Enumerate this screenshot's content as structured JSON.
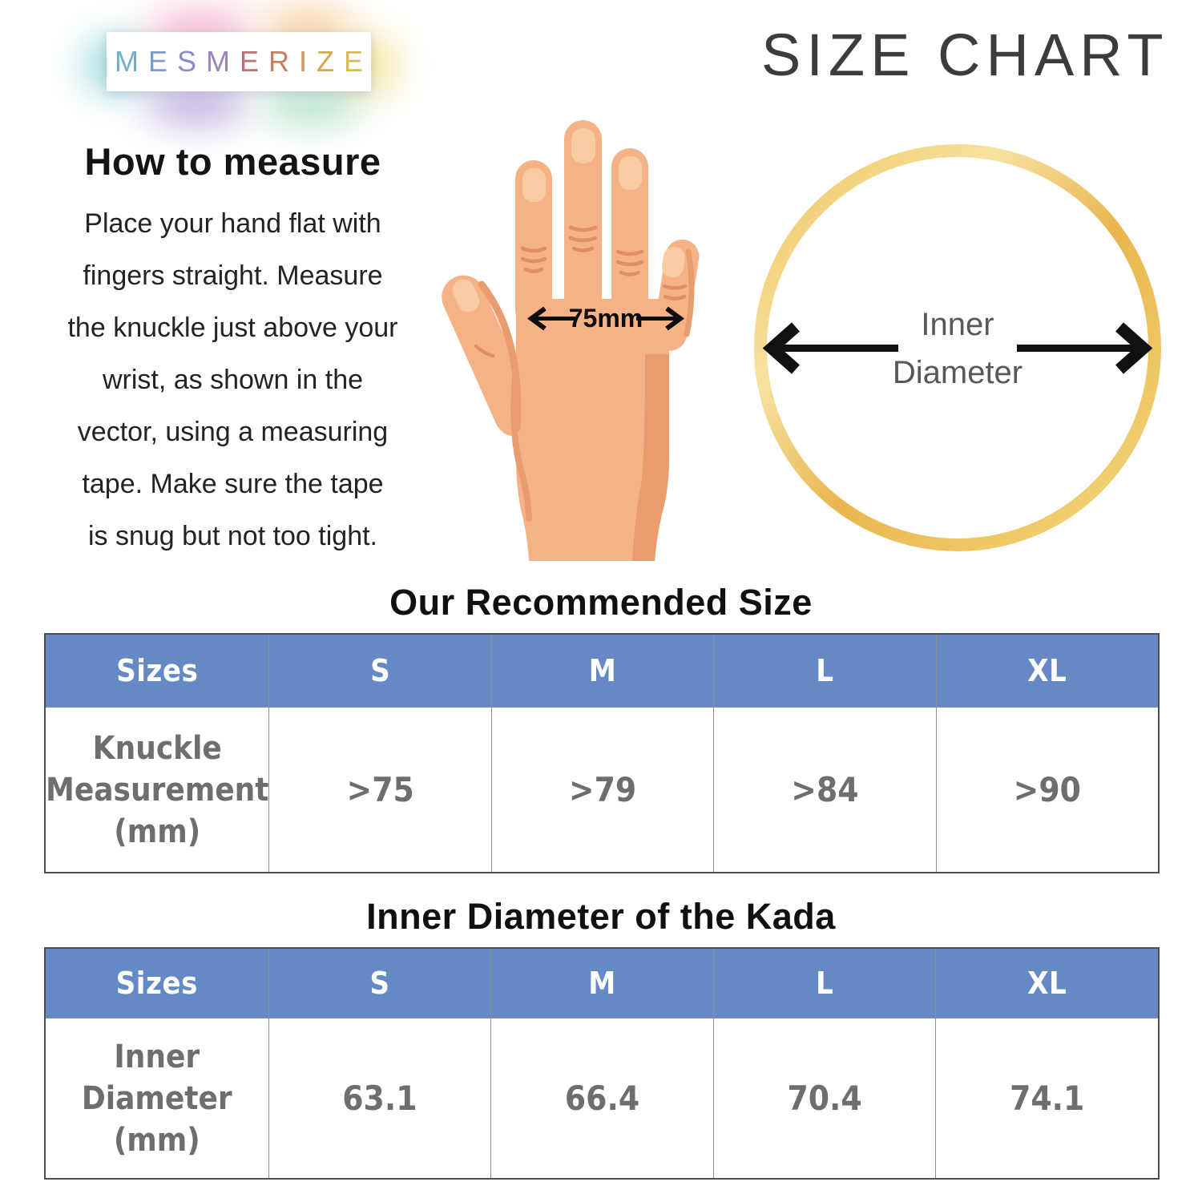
{
  "brand": {
    "name": "MESMERIZE",
    "letters": [
      "M",
      "E",
      "S",
      "M",
      "E",
      "R",
      "I",
      "Z",
      "E"
    ],
    "letter_colors": [
      "#74AFC9",
      "#7E9BC8",
      "#8A8EC3",
      "#9C85BB",
      "#B87473",
      "#C5815F",
      "#D29355",
      "#D4A851",
      "#D7BB55"
    ]
  },
  "page_title": "SIZE CHART",
  "how_to_measure": {
    "heading": "How to measure",
    "body": "Place your hand flat with\nfingers straight. Measure\nthe knuckle just above your\nwrist, as shown in the\nvector, using a measuring\ntape. Make sure the tape\nis snug but not too tight."
  },
  "hand_diagram": {
    "measurement_label": "75mm"
  },
  "kada_diagram": {
    "label_line1": "Inner",
    "label_line2": "Diameter",
    "ring_color": "#EEC566"
  },
  "tables": [
    {
      "title": "Our Recommended Size",
      "columns": [
        "Sizes",
        "S",
        "M",
        "L",
        "XL"
      ],
      "row_label": "Knuckle\nMeasurement\n(mm)",
      "values": [
        ">75",
        ">79",
        ">84",
        ">90"
      ],
      "header_bg": "#6489C5",
      "header_text_color": "#FFFFFF",
      "body_text_color": "#6E6E6E"
    },
    {
      "title": "Inner Diameter of the Kada",
      "columns": [
        "Sizes",
        "S",
        "M",
        "L",
        "XL"
      ],
      "row_label": "Inner\nDiameter\n(mm)",
      "values": [
        "63.1",
        "66.4",
        "70.4",
        "74.1"
      ],
      "header_bg": "#6489C5",
      "header_text_color": "#FFFFFF",
      "body_text_color": "#6E6E6E"
    }
  ]
}
